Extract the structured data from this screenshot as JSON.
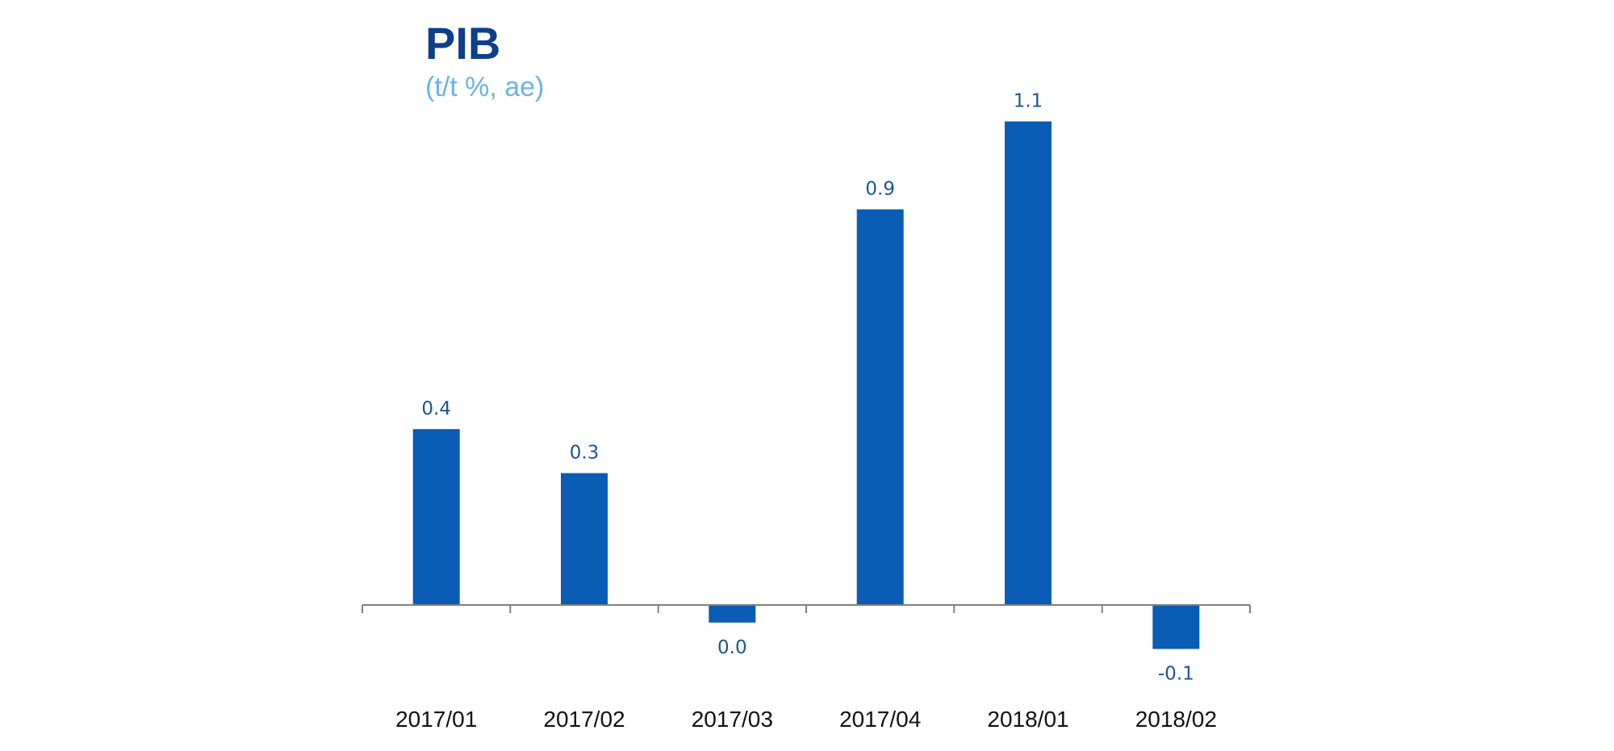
{
  "title": "PIB",
  "subtitle": "(t/t %, ae)",
  "colors": {
    "bar": "#0a5cb5",
    "title": "#0d3f8a",
    "subtitle": "#6ab3ea",
    "value_label": "#1f5590",
    "axis": "#7f7f7f",
    "tick_label": "#111111"
  },
  "chart_data": {
    "type": "bar",
    "title": "PIB",
    "subtitle": "(t/t %, ae)",
    "categories": [
      "2017/01",
      "2017/02",
      "2017/03",
      "2017/04",
      "2018/01",
      "2018/02"
    ],
    "values": [
      0.4,
      0.3,
      -0.04,
      0.9,
      1.1,
      -0.1
    ],
    "data_labels": [
      "0.4",
      "0.3",
      "0.0",
      "0.9",
      "1.1",
      "-0.1"
    ],
    "xlabel": "",
    "ylabel": "",
    "grid": false,
    "legend": "none"
  }
}
